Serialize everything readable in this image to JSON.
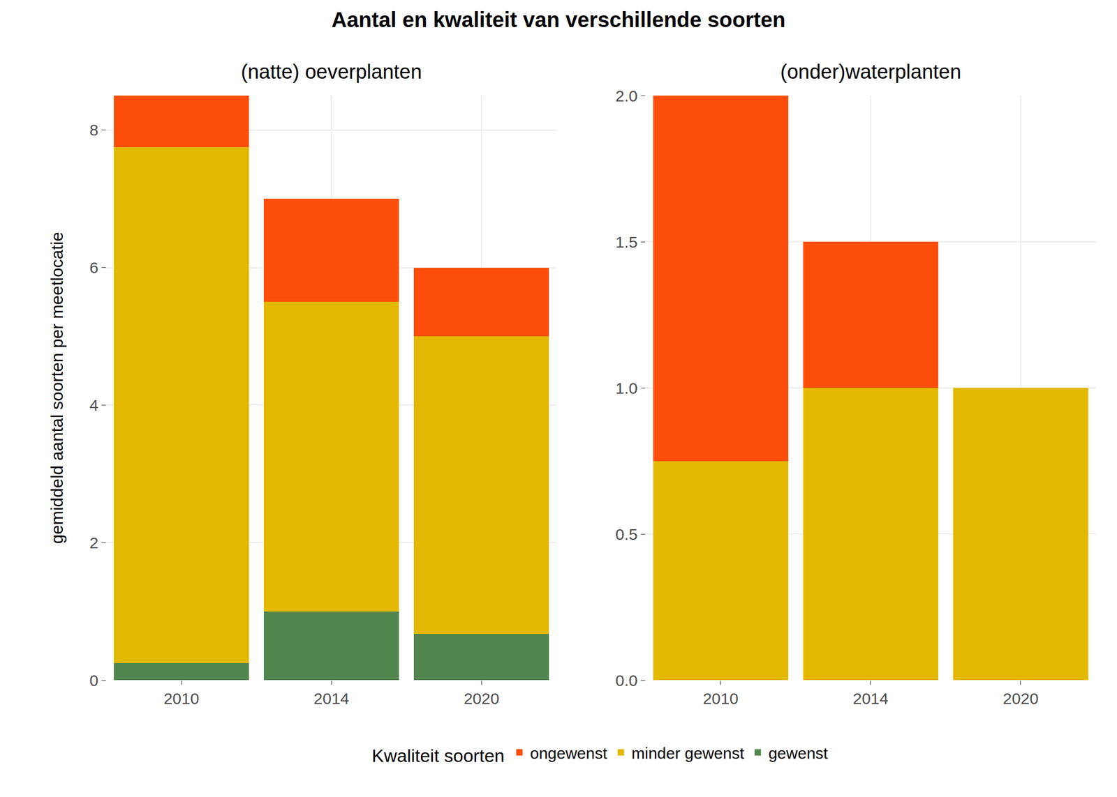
{
  "title": "Aantal en kwaliteit van verschillende soorten",
  "y_label": "gemiddeld aantal soorten per meetlocatie",
  "legend_title": "Kwaliteit soorten",
  "chart_data": [
    {
      "type": "bar",
      "title": "(natte) oeverplanten",
      "stacked": true,
      "grid": true,
      "categories": [
        "2010",
        "2014",
        "2020"
      ],
      "series": [
        {
          "name": "gewenst",
          "color": "#52864F",
          "values": [
            0.25,
            1,
            0.67
          ]
        },
        {
          "name": "minder gewenst",
          "color": "#E3B800",
          "values": [
            7.5,
            4.5,
            4.33
          ]
        },
        {
          "name": "ongewenst",
          "color": "#FC4E0A",
          "values": [
            0.75,
            1.5,
            1
          ]
        }
      ],
      "ylim": [
        0,
        8.5
      ],
      "yticks": [
        0,
        2,
        4,
        6,
        8
      ]
    },
    {
      "type": "bar",
      "title": "(onder)waterplanten",
      "stacked": true,
      "grid": true,
      "categories": [
        "2010",
        "2014",
        "2020"
      ],
      "series": [
        {
          "name": "minder gewenst",
          "color": "#E3B800",
          "values": [
            0.75,
            1,
            1
          ]
        },
        {
          "name": "ongewenst",
          "color": "#FC4E0A",
          "values": [
            1.25,
            0.5,
            0
          ]
        }
      ],
      "ylim": [
        0,
        2
      ],
      "yticks": [
        {
          "value": 0,
          "label": "0.0"
        },
        0.5,
        {
          "value": 1,
          "label": "1.0"
        },
        1.5,
        {
          "value": 2,
          "label": "2.0"
        }
      ]
    }
  ]
}
